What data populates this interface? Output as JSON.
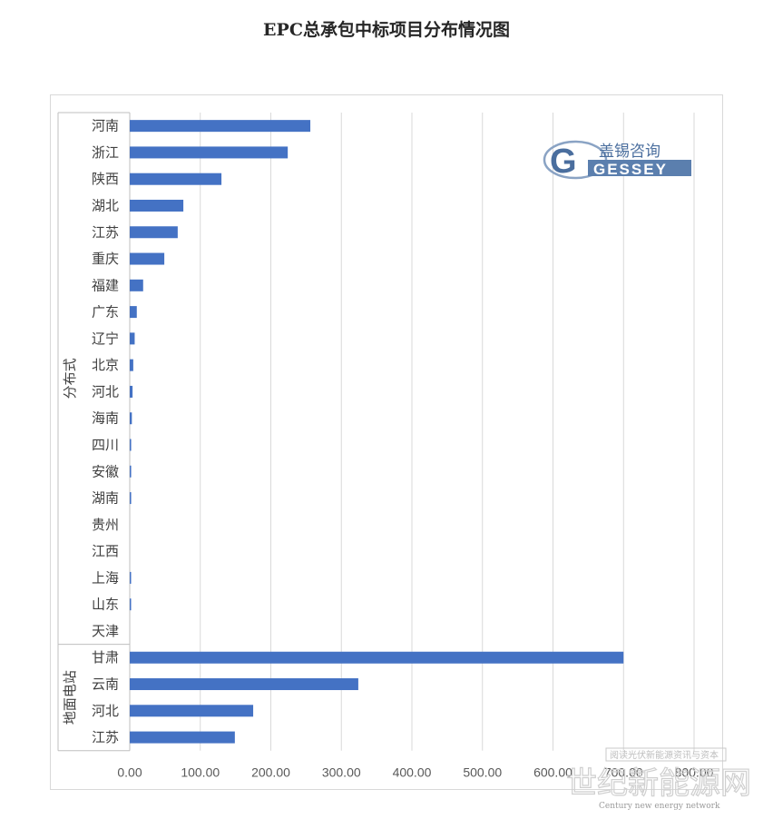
{
  "chart_data": {
    "type": "bar",
    "orientation": "horizontal",
    "title": "EPC总承包中标项目分布情况图",
    "xlim": [
      0,
      800
    ],
    "x_ticks": [
      "0.00",
      "100.00",
      "200.00",
      "300.00",
      "400.00",
      "500.00",
      "600.00",
      "700.00",
      "800.00"
    ],
    "x_tick_values": [
      0,
      100,
      200,
      300,
      400,
      500,
      600,
      700,
      800
    ],
    "grid": true,
    "bar_color": "#4472c4",
    "groups": [
      {
        "name": "分布式",
        "categories": [
          "河南",
          "浙江",
          "陕西",
          "湖北",
          "江苏",
          "重庆",
          "福建",
          "广东",
          "辽宁",
          "北京",
          "河北",
          "海南",
          "四川",
          "安徽",
          "湖南",
          "贵州",
          "江西",
          "上海",
          "山东",
          "天津"
        ],
        "values": [
          256,
          224,
          130,
          76,
          68,
          49,
          19,
          10,
          7,
          5,
          4,
          3,
          2,
          2,
          2,
          0,
          0,
          1,
          1,
          0
        ]
      },
      {
        "name": "地面电站",
        "categories": [
          "甘肃",
          "云南",
          "河北",
          "江苏"
        ],
        "values": [
          700,
          324,
          175,
          149
        ]
      }
    ]
  },
  "logo": {
    "text_cn": "盖锡咨询",
    "text_en": "GESSEY",
    "color": "#4a6e9e"
  },
  "watermark": {
    "line1": "阅读光伏新能源资讯与资本",
    "line2": "世纪新能源网",
    "line3": "Century new energy network"
  }
}
